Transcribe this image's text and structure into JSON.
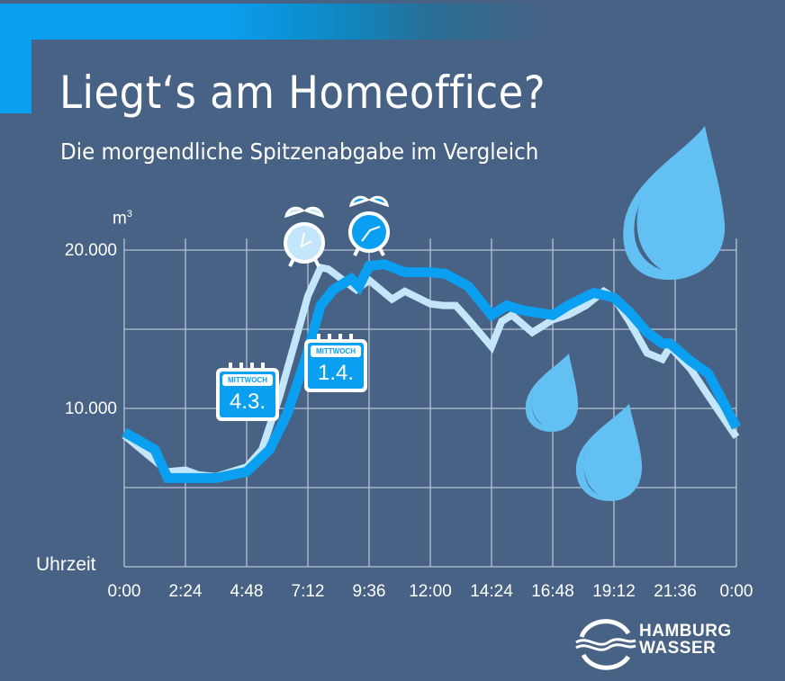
{
  "header": {
    "title": "Liegt‘s am Homeoffice?",
    "subtitle": "Die morgendliche Spitzenabgabe im Vergleich"
  },
  "colors": {
    "background": "#476284",
    "accent": "#0a9ff0",
    "series_light": "#c4e6fb",
    "series_dark": "#0a9ff0",
    "drop": "#62c1f2",
    "grid": "#b9c4d2"
  },
  "axis": {
    "y_unit": "m",
    "y_unit_sup": "3",
    "y_ticks": [
      "20.000",
      "10.000"
    ],
    "x_label": "Uhrzeit",
    "x_ticks": [
      "0:00",
      "2:24",
      "4:48",
      "7:12",
      "9:36",
      "12:00",
      "14:24",
      "16:48",
      "19:12",
      "21:36",
      "0:00"
    ]
  },
  "annotations": {
    "calendar_march": {
      "weekday": "MITTWOCH",
      "date": "4.3."
    },
    "calendar_april": {
      "weekday": "MITTWOCH",
      "date": "1.4."
    },
    "icons": [
      "alarm-clock-icon-light",
      "alarm-clock-icon-dark",
      "water-drop-icon-large",
      "water-drop-icon-small",
      "water-drop-icon-medium"
    ]
  },
  "logo": {
    "line1": "HAMBURG",
    "line2": "WASSER"
  },
  "chart_data": {
    "type": "line",
    "title": "Liegt‘s am Homeoffice?",
    "subtitle": "Die morgendliche Spitzenabgabe im Vergleich",
    "xlabel": "Uhrzeit",
    "ylabel": "m³",
    "x_range_hours": [
      0,
      24
    ],
    "ylim": [
      0,
      20000
    ],
    "y_tick_values": [
      0,
      5000,
      10000,
      15000,
      20000
    ],
    "y_tick_labels_shown": {
      "20000": "20.000",
      "10000": "10.000"
    },
    "grid": true,
    "series": [
      {
        "name": "Mittwoch 4.3.",
        "color": "#c4e6fb",
        "x_hours": [
          0,
          1.2,
          1.7,
          2.4,
          2.9,
          3.6,
          4.8,
          5.4,
          6.1,
          6.8,
          7.2,
          7.7,
          8.0,
          8.5,
          9.1,
          9.6,
          9.9,
          10.5,
          11.0,
          12.0,
          12.5,
          13.0,
          13.5,
          14.4,
          14.8,
          15.2,
          16.0,
          16.8,
          17.4,
          18.1,
          18.8,
          19.2,
          19.8,
          20.5,
          21.1,
          21.4,
          22.2,
          22.9,
          24.0
        ],
        "values": [
          8300,
          6700,
          6000,
          6100,
          5800,
          5700,
          6300,
          7400,
          10800,
          14800,
          17100,
          18900,
          18800,
          18200,
          17500,
          18100,
          17700,
          16900,
          17400,
          16600,
          16500,
          16500,
          15600,
          13900,
          15500,
          15900,
          14800,
          15600,
          15900,
          16500,
          17400,
          17000,
          15500,
          13500,
          13100,
          13900,
          12500,
          10800,
          8200
        ]
      },
      {
        "name": "Mittwoch 1.4.",
        "color": "#0a9ff0",
        "x_hours": [
          0,
          1.2,
          1.7,
          2.4,
          3.6,
          4.8,
          5.7,
          6.4,
          7.1,
          7.7,
          8.2,
          8.9,
          9.2,
          9.6,
          10.2,
          11.0,
          12.0,
          12.6,
          13.5,
          14.4,
          15.0,
          15.6,
          16.8,
          17.4,
          18.4,
          19.2,
          19.8,
          20.5,
          21.1,
          21.4,
          22.2,
          22.9,
          24.0
        ],
        "values": [
          8500,
          7400,
          5600,
          5600,
          5600,
          6000,
          7400,
          9700,
          13100,
          16500,
          17500,
          18200,
          17700,
          19000,
          19100,
          18600,
          18600,
          18500,
          17700,
          15900,
          16500,
          16200,
          15900,
          16500,
          17300,
          17000,
          16100,
          14800,
          14100,
          14100,
          13000,
          12200,
          8800
        ]
      }
    ]
  }
}
